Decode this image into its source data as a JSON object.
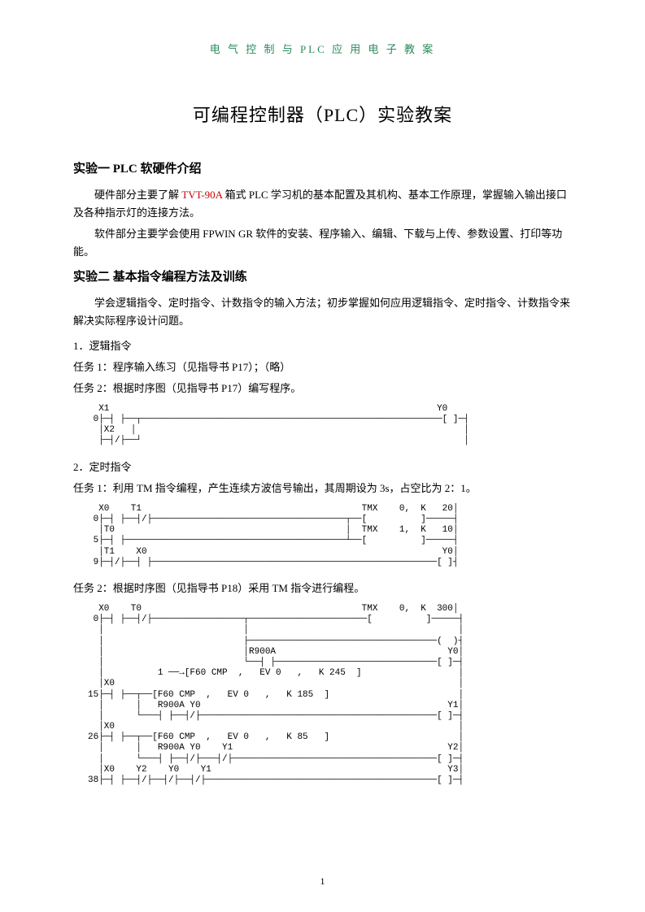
{
  "header": "电 气 控 制 与 PLC 应 用 电 子 教 案",
  "mainTitle": "可编程控制器（PLC）实验教案",
  "section1": {
    "title": "实验一  PLC 软硬件介绍",
    "para1_prefix": "硬件部分主要了解 ",
    "para1_highlight": "TVT-90A",
    "para1_suffix": " 箱式 PLC 学习机的基本配置及其机构、基本工作原理，掌握输入输出接口及各种指示灯的连接方法。",
    "para2": "软件部分主要学会使用 FPWIN GR 软件的安装、程序输入、编辑、下载与上传、参数设置、打印等功能。"
  },
  "section2": {
    "title": "实验二  基本指令编程方法及训练",
    "para1": "学会逻辑指令、定时指令、计数指令的输入方法；初步掌握如何应用逻辑指令、定时指令、计数指令来解决实际程序设计问题。",
    "sub1": "1．逻辑指令",
    "task1": "任务 1：程序输入练习（见指导书 P17）；（略）",
    "task2": "任务 2：根据时序图（见指导书 P17）编写程序。",
    "sub2": "2．定时指令",
    "task3": "任务 1：利用 TM 指令编程，产生连续方波信号输出，其周期设为 3s，占空比为 2：1。",
    "task4": "任务 2：根据时序图（见指导书 P18）采用 TM 指令进行编程。"
  },
  "diagrams": {
    "d1": "  X1                                                             Y0\n 0├─┤ ├──┬────────────────────────────────────────────────────────[ ]─┤\n  │X2   │                                                             │\n  ├─┤/├──┘                                                            │",
    "d2": "  X0    T1                                         TMX    0,  K   20│\n 0├─┤ ├──┤/├────────────────────────────────────┬──[          ]─────┤\n  │T0                                           │  TMX    1,  K   10│\n 5├─┤ ├─────────────────────────────────────────┴──[          ]─────┤\n  │T1    X0                                                       Y0│\n 9├─┤/├──┤ ├─────────────────────────────────────────────────────[ ]┤",
    "d3": "  X0    T0                                         TMX    0,  K  300│\n 0├─┤ ├──┤/├─────────────────┬──────────────────────[          ]─────┤\n  │                          │                                       │\n  │                          ├───────────────────────────────────(  )┤\n  │                          │R900A                                Y0│\n  │                          └──┤ ├──────────────────────────────[ ]─┤\n  │          1 ──→[F60 CMP  ,   EV 0   ,   K 245  ]                  │\n  │X0                                                                │\n15├─┤ ├──┬──[F60 CMP  ,   EV 0   ,   K 185  ]                        │\n  │      │   R900A Y0                                              Y1│\n  │      └───┤ ├──┤/├────────────────────────────────────────────[ ]─┤\n  │X0                                                                │\n26├─┤ ├──┬──[F60 CMP  ,   EV 0   ,   K 85   ]                        │\n  │      │   R900A Y0    Y1                                        Y2│\n  │      └───┤ ├──┤/├───┤/├──────────────────────────────────────[ ]─┤\n  │X0    Y2    Y0    Y1                                            Y3│\n38├─┤ ├──┤/├──┤/├──┤/├───────────────────────────────────────────[ ]─┤"
  },
  "pageNumber": "1"
}
